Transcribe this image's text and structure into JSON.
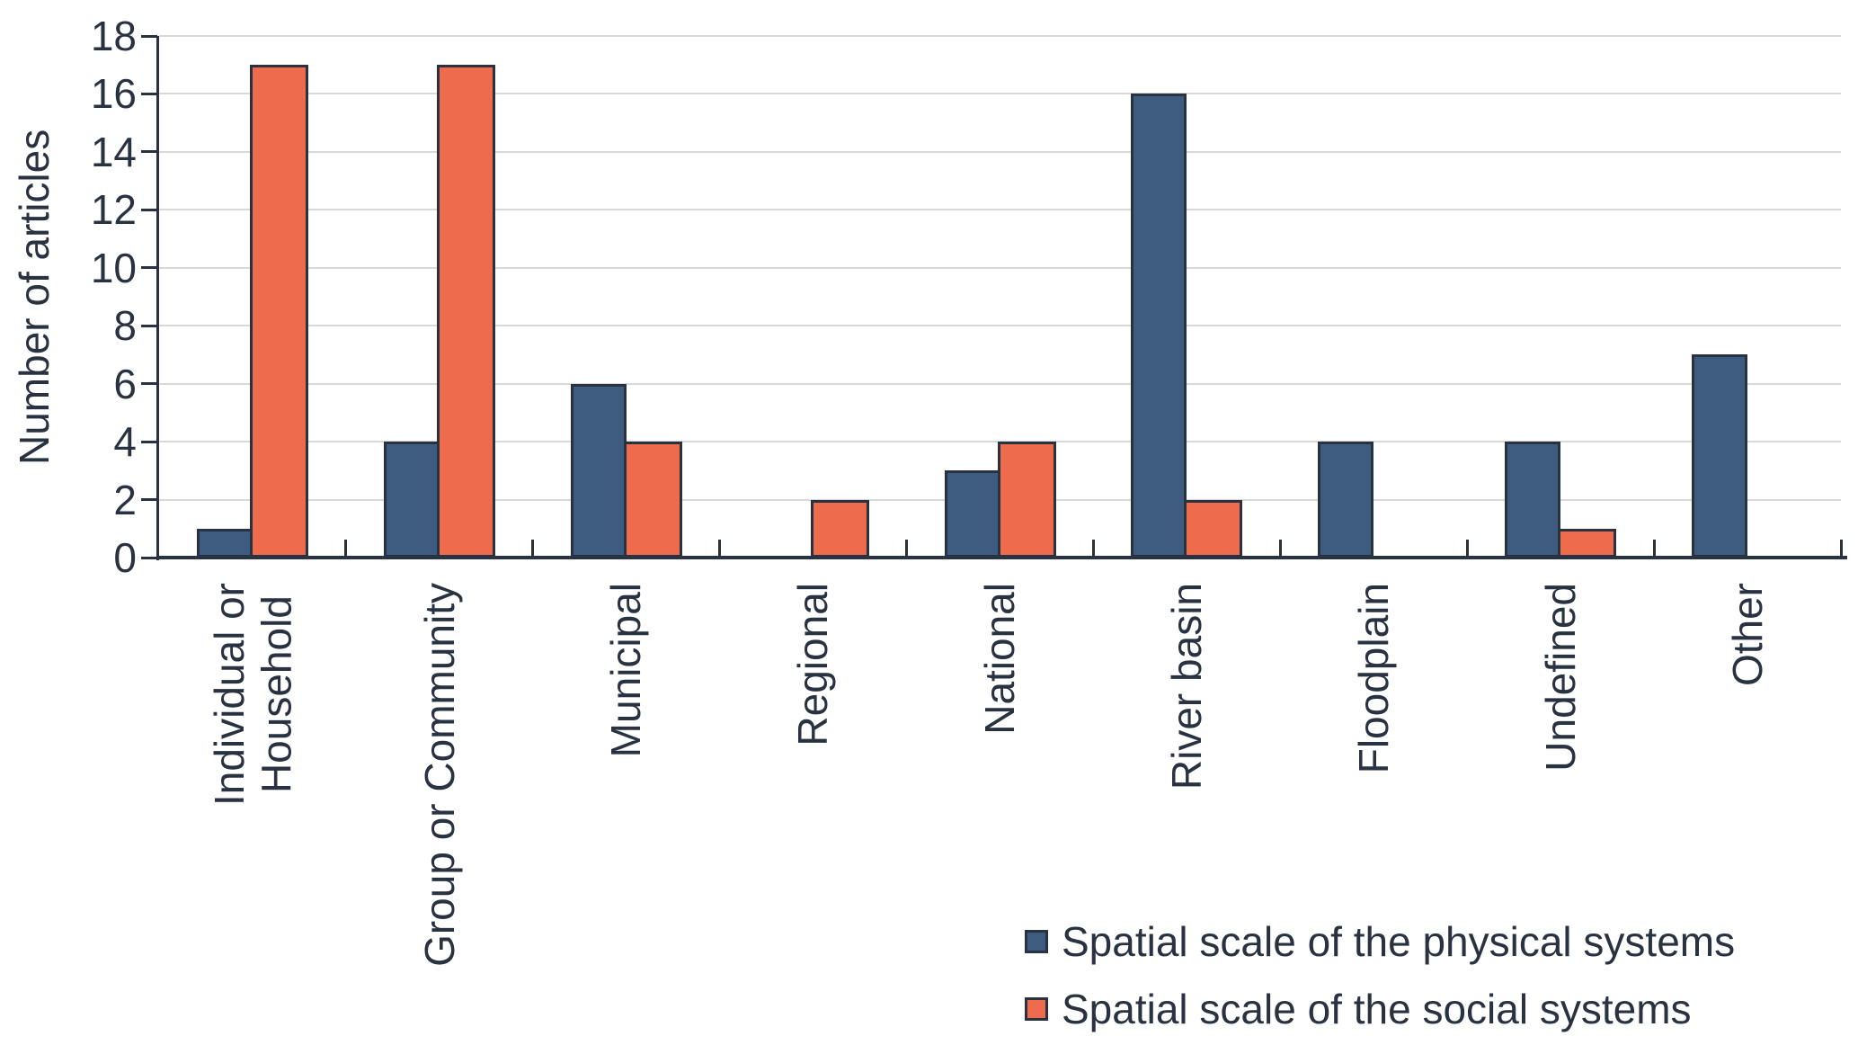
{
  "chart_data": {
    "type": "bar",
    "title": "",
    "xlabel": "",
    "ylabel": "Number of articles",
    "ylim": [
      0,
      18
    ],
    "yticks": [
      0,
      2,
      4,
      6,
      8,
      10,
      12,
      14,
      16,
      18
    ],
    "grid": true,
    "legend_position": "bottom-right",
    "categories": [
      "Individual or\nHousehold",
      "Group or Community",
      "Municipal",
      "Regional",
      "National",
      "River basin",
      "Floodplain",
      "Undefined",
      "Other"
    ],
    "series": [
      {
        "name": "Spatial scale of the physical systems",
        "color": "#3E5B80",
        "values": [
          1,
          4,
          6,
          0,
          3,
          16,
          4,
          4,
          7
        ]
      },
      {
        "name": "Spatial scale of the social systems",
        "color": "#EE6C4D",
        "values": [
          17,
          17,
          4,
          2,
          4,
          2,
          0,
          1,
          0
        ]
      }
    ]
  },
  "colors": {
    "bar_outline": "#293241",
    "axis": "#293241",
    "text": "#293241",
    "gridline": "#D9D9D9",
    "background": "#FFFFFF"
  }
}
